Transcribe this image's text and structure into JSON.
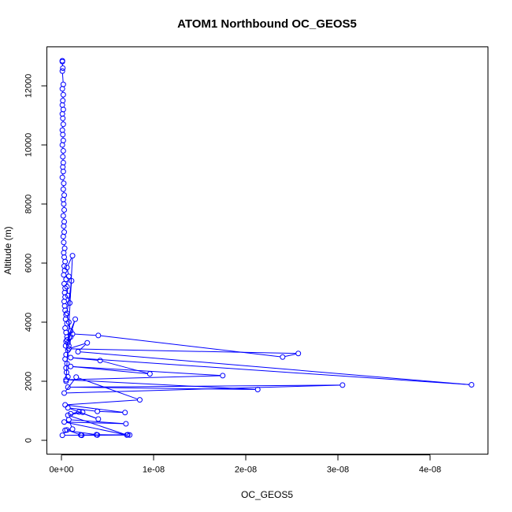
{
  "chart_data": {
    "type": "line",
    "title": "ATOM1 Northbound OC_GEOS5",
    "xlabel": "OC_GEOS5",
    "ylabel": "Altitude (m)",
    "xlim": [
      0,
      4.5e-08
    ],
    "ylim": [
      0,
      13000
    ],
    "x_ticks": [
      0,
      1e-08,
      2e-08,
      3e-08,
      4e-08
    ],
    "x_tick_labels": [
      "0e+00",
      "1e-08",
      "2e-08",
      "3e-08",
      "4e-08"
    ],
    "y_ticks": [
      0,
      2000,
      4000,
      6000,
      8000,
      10000,
      12000
    ],
    "y_tick_labels": [
      "0",
      "2000",
      "4000",
      "6000",
      "8000",
      "10000",
      "12000"
    ],
    "grid": false,
    "legend": "none",
    "marker": "open-circle",
    "color": "#0000ff",
    "series": [
      {
        "x": [
          1e-10,
          1e-10,
          1.5e-10,
          1e-10,
          2e-10,
          1e-10,
          2e-10,
          1.5e-10,
          1e-10,
          2e-10,
          1e-10,
          1.5e-10,
          2e-10,
          1e-10,
          1.5e-10,
          2e-10,
          1e-10,
          2e-10,
          1.5e-10,
          2e-10,
          1.5e-10,
          2e-10,
          1e-10,
          2.5e-10,
          2e-10,
          3e-10,
          2e-10,
          2.5e-10,
          3e-10,
          2e-10,
          3e-10,
          2.5e-10,
          3e-10,
          2e-10,
          2.5e-10,
          3.5e-10,
          2.5e-10,
          3e-10,
          4e-10,
          3e-10,
          3.5e-10,
          2.5e-10,
          5e-10,
          3e-10,
          4e-10,
          3.5e-10,
          4e-10,
          3e-10,
          3.5e-10,
          4e-10,
          5e-10,
          4.5e-10,
          6e-10,
          4e-10,
          5e-10,
          6e-10,
          5e-10,
          4.5e-10,
          7e-10,
          5e-10,
          4e-10,
          6e-10,
          5e-10,
          5.5e-10,
          7e-10,
          5e-10,
          1.2e-09,
          6e-10,
          8e-10,
          6e-10,
          7e-10,
          9e-10,
          1.1e-09,
          6e-10,
          8e-10,
          1e-09,
          6e-10,
          1.5e-09,
          7e-10,
          1e-09,
          8e-10,
          1.2e-09,
          4e-09,
          2.4e-08,
          2.57e-08,
          8e-10,
          2.8e-09,
          1.8e-09,
          4.45e-08,
          1e-09,
          4.2e-09,
          9.6e-09,
          1e-09,
          1.75e-08,
          5e-10,
          2.13e-08,
          7e-10,
          3.05e-08,
          3e-10,
          1.6e-09,
          8.5e-09,
          4e-10,
          6.9e-09,
          3.9e-09,
          7e-10,
          4e-09,
          1.9e-09,
          1e-09,
          2.3e-09,
          7e-10,
          7.1e-09,
          3e-10,
          7e-09,
          8e-10,
          1.2e-09,
          4e-10,
          3.8e-09,
          7.4e-09,
          2.2e-09,
          6e-10,
          1e-10,
          7.2e-09,
          3.9e-09,
          2.1e-09
        ],
        "y": [
          12850,
          12820,
          12600,
          12500,
          12050,
          11900,
          11700,
          11500,
          11350,
          11200,
          11050,
          10900,
          10700,
          10500,
          10350,
          10150,
          10000,
          9800,
          9600,
          9400,
          9250,
          9100,
          8900,
          8700,
          8500,
          8300,
          8150,
          8000,
          7800,
          7600,
          7400,
          7250,
          7050,
          6900,
          6700,
          6500,
          6350,
          6200,
          6050,
          5900,
          5750,
          5600,
          5450,
          5300,
          5150,
          5000,
          4850,
          4700,
          4550,
          4400,
          4250,
          4100,
          3950,
          3800,
          3650,
          3500,
          3350,
          3200,
          3050,
          2900,
          2750,
          2600,
          2450,
          2300,
          2150,
          2000,
          6250,
          5850,
          5550,
          5200,
          4900,
          4650,
          5400,
          4300,
          4000,
          3700,
          3400,
          4100,
          3300,
          3500,
          3200,
          3600,
          3550,
          2820,
          2940,
          3100,
          3300,
          3000,
          1880,
          2800,
          2700,
          2250,
          2500,
          2190,
          2050,
          1720,
          1800,
          1870,
          1600,
          2140,
          1370,
          1200,
          940,
          980,
          1100,
          720,
          960,
          900,
          950,
          850,
          180,
          620,
          560,
          700,
          380,
          340,
          190,
          180,
          170,
          350,
          170,
          190,
          180,
          180
        ]
      }
    ]
  }
}
